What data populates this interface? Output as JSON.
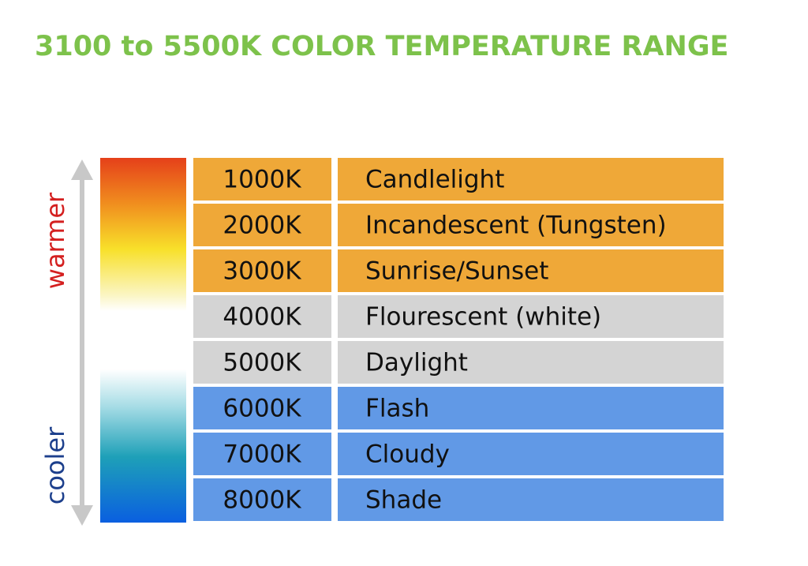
{
  "title": "3100 to 5500K COLOR TEMPERATURE RANGE",
  "scale": {
    "top_label": "warmer",
    "bottom_label": "cooler"
  },
  "table": {
    "rows": [
      {
        "kelvin": "1000K",
        "description": "Candlelight",
        "color": "#efa838"
      },
      {
        "kelvin": "2000K",
        "description": "Incandescent (Tungsten)",
        "color": "#efa838"
      },
      {
        "kelvin": "3000K",
        "description": "Sunrise/Sunset",
        "color": "#efa838"
      },
      {
        "kelvin": "4000K",
        "description": "Flourescent (white)",
        "color": "#d4d4d4"
      },
      {
        "kelvin": "5000K",
        "description": "Daylight",
        "color": "#d4d4d4"
      },
      {
        "kelvin": "6000K",
        "description": "Flash",
        "color": "#6199e6"
      },
      {
        "kelvin": "7000K",
        "description": "Cloudy",
        "color": "#6199e6"
      },
      {
        "kelvin": "8000K",
        "description": "Shade",
        "color": "#6199e6"
      }
    ]
  }
}
